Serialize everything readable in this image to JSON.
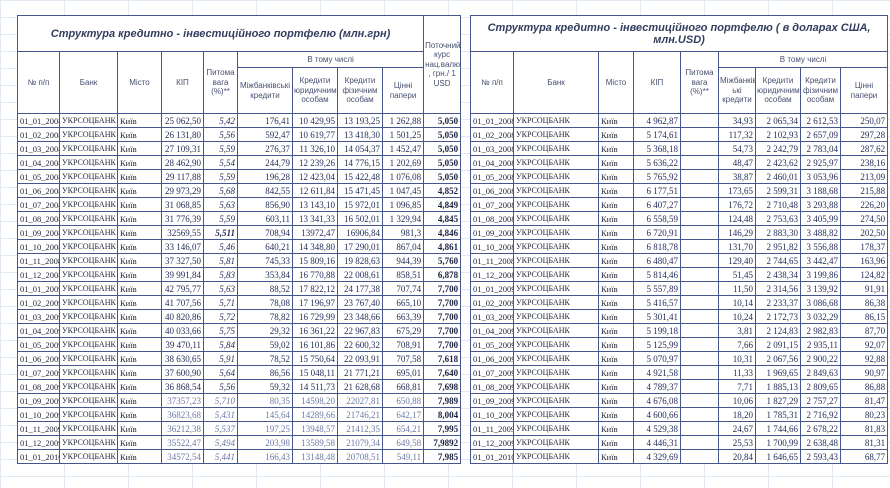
{
  "sheet": {
    "left_table": {
      "title": "Структура кредитно - інвестиційного портфелю (млн.грн)",
      "group_header": "В тому числі",
      "columns": [
        "№ п/п",
        "Банк",
        "Місто",
        "КІП",
        "Питома вага (%)**",
        "Міжбанківські кредити",
        "Кредити юридичним особам",
        "Кредити фізичним особам",
        "Цінні папери"
      ],
      "currency_column": "Поточний курс нац.валюти , грн./ 1 USD",
      "rows": [
        {
          "date": "01_01_2008",
          "bank": "УКРСОЦБАНК",
          "city": "Київ",
          "kip": "25 062,50",
          "share": "5,42",
          "interbank": "176,41",
          "legal": "10 429,95",
          "individual": "13 193,25",
          "securities": "1 262,88",
          "rate": "5,050"
        },
        {
          "date": "01_02_2008",
          "bank": "УКРСОЦБАНК",
          "city": "Київ",
          "kip": "26 131,80",
          "share": "5,56",
          "interbank": "592,47",
          "legal": "10 619,77",
          "individual": "13 418,30",
          "securities": "1 501,25",
          "rate": "5,050"
        },
        {
          "date": "01_03_2008",
          "bank": "УКРСОЦБАНК",
          "city": "Київ",
          "kip": "27 109,31",
          "share": "5,59",
          "interbank": "276,37",
          "legal": "11 326,10",
          "individual": "14 054,37",
          "securities": "1 452,47",
          "rate": "5,050"
        },
        {
          "date": "01_04_2008",
          "bank": "УКРСОЦБАНК",
          "city": "Київ",
          "kip": "28 462,90",
          "share": "5,54",
          "interbank": "244,79",
          "legal": "12 239,26",
          "individual": "14 776,15",
          "securities": "1 202,69",
          "rate": "5,050"
        },
        {
          "date": "01_05_2008",
          "bank": "УКРСОЦБАНК",
          "city": "Київ",
          "kip": "29 117,88",
          "share": "5,59",
          "interbank": "196,28",
          "legal": "12 423,04",
          "individual": "15 422,48",
          "securities": "1 076,08",
          "rate": "5,050"
        },
        {
          "date": "01_06_2008",
          "bank": "УКРСОЦБАНК",
          "city": "Київ",
          "kip": "29 973,29",
          "share": "5,68",
          "interbank": "842,55",
          "legal": "12 611,84",
          "individual": "15 471,45",
          "securities": "1 047,45",
          "rate": "4,852"
        },
        {
          "date": "01_07_2008",
          "bank": "УКРСОЦБАНК",
          "city": "Київ",
          "kip": "31 068,85",
          "share": "5,63",
          "interbank": "856,90",
          "legal": "13 143,10",
          "individual": "15 972,01",
          "securities": "1 096,85",
          "rate": "4,849"
        },
        {
          "date": "01_08_2008",
          "bank": "УКРСОЦБАНК",
          "city": "Київ",
          "kip": "31 776,39",
          "share": "5,59",
          "interbank": "603,11",
          "legal": "13 341,33",
          "individual": "16 502,01",
          "securities": "1 329,94",
          "rate": "4,845"
        },
        {
          "date": "01_09_2008",
          "bank": "УКРСОЦБАНК",
          "city": "Київ",
          "kip": "32569,55",
          "share": "5,511",
          "interbank": "708,94",
          "legal": "13972,47",
          "individual": "16906,84",
          "securities": "981,3",
          "rate": "4,846"
        },
        {
          "date": "01_10_2008",
          "bank": "УКРСОЦБАНК",
          "city": "Київ",
          "kip": "33 146,07",
          "share": "5,46",
          "interbank": "640,21",
          "legal": "14 348,80",
          "individual": "17 290,01",
          "securities": "867,04",
          "rate": "4,861"
        },
        {
          "date": "01_11_2008",
          "bank": "УКРСОЦБАНК",
          "city": "Київ",
          "kip": "37 327,50",
          "share": "5,81",
          "interbank": "745,33",
          "legal": "15 809,16",
          "individual": "19 828,63",
          "securities": "944,39",
          "rate": "5,760"
        },
        {
          "date": "01_12_2008",
          "bank": "УКРСОЦБАНК",
          "city": "Київ",
          "kip": "39 991,84",
          "share": "5,83",
          "interbank": "353,84",
          "legal": "16 770,88",
          "individual": "22 008,61",
          "securities": "858,51",
          "rate": "6,878"
        },
        {
          "date": "01_01_2009",
          "bank": "УКРСОЦБАНК",
          "city": "Київ",
          "kip": "42 795,77",
          "share": "5,63",
          "interbank": "88,52",
          "legal": "17 822,12",
          "individual": "24 177,38",
          "securities": "707,74",
          "rate": "7,700"
        },
        {
          "date": "01_02_2009",
          "bank": "УКРСОЦБАНК",
          "city": "Київ",
          "kip": "41 707,56",
          "share": "5,71",
          "interbank": "78,08",
          "legal": "17 196,97",
          "individual": "23 767,40",
          "securities": "665,10",
          "rate": "7,700"
        },
        {
          "date": "01_03_2009",
          "bank": "УКРСОЦБАНК",
          "city": "Київ",
          "kip": "40 820,86",
          "share": "5,72",
          "interbank": "78,82",
          "legal": "16 729,99",
          "individual": "23 348,66",
          "securities": "663,39",
          "rate": "7,700"
        },
        {
          "date": "01_04_2009",
          "bank": "УКРСОЦБАНК",
          "city": "Київ",
          "kip": "40 033,66",
          "share": "5,75",
          "interbank": "29,32",
          "legal": "16 361,22",
          "individual": "22 967,83",
          "securities": "675,29",
          "rate": "7,700"
        },
        {
          "date": "01_05_2009",
          "bank": "УКРСОЦБАНК",
          "city": "Київ",
          "kip": "39 470,11",
          "share": "5,84",
          "interbank": "59,02",
          "legal": "16 101,86",
          "individual": "22 600,32",
          "securities": "708,91",
          "rate": "7,700"
        },
        {
          "date": "01_06_2009",
          "bank": "УКРСОЦБАНК",
          "city": "Київ",
          "kip": "38 630,65",
          "share": "5,91",
          "interbank": "78,52",
          "legal": "15 750,64",
          "individual": "22 093,91",
          "securities": "707,58",
          "rate": "7,618"
        },
        {
          "date": "01_07_2009",
          "bank": "УКРСОЦБАНК",
          "city": "Київ",
          "kip": "37 600,90",
          "share": "5,64",
          "interbank": "86,56",
          "legal": "15 048,11",
          "individual": "21 771,21",
          "securities": "695,01",
          "rate": "7,640"
        },
        {
          "date": "01_08_2009",
          "bank": "УКРСОЦБАНК",
          "city": "Київ",
          "kip": "36 868,54",
          "share": "5,56",
          "interbank": "59,32",
          "legal": "14 511,73",
          "individual": "21 628,68",
          "securities": "668,81",
          "rate": "7,698"
        },
        {
          "date": "01_09_2009",
          "bank": "УКРСОЦБАНК",
          "city": "Київ",
          "kip": "37357,23",
          "share": "5,710",
          "interbank": "80,35",
          "legal": "14598,20",
          "individual": "22027,81",
          "securities": "650,88",
          "rate": "7,989"
        },
        {
          "date": "01_10_2009",
          "bank": "УКРСОЦБАНК",
          "city": "Київ",
          "kip": "36823,68",
          "share": "5,431",
          "interbank": "145,64",
          "legal": "14289,66",
          "individual": "21746,21",
          "securities": "642,17",
          "rate": "8,004"
        },
        {
          "date": "01_11_2009",
          "bank": "УКРСОЦБАНК",
          "city": "Київ",
          "kip": "36212,38",
          "share": "5,537",
          "interbank": "197,25",
          "legal": "13948,57",
          "individual": "21412,35",
          "securities": "654,21",
          "rate": "7,995"
        },
        {
          "date": "01_12_2009",
          "bank": "УКРСОЦБАНК",
          "city": "Київ",
          "kip": "35522,47",
          "share": "5,494",
          "interbank": "203,98",
          "legal": "13589,58",
          "individual": "21079,34",
          "securities": "649,58",
          "rate": "7,9892"
        },
        {
          "date": "01_01_2010",
          "bank": "УКРСОЦБАНК",
          "city": "Київ",
          "kip": "34572,54",
          "share": "5,441",
          "interbank": "166,43",
          "legal": "13148,48",
          "individual": "20708,51",
          "securities": "549,11",
          "rate": "7,985"
        }
      ]
    },
    "right_table": {
      "title": "Структура кредитно - інвестиційного портфелю ( в доларах США, млн.USD)",
      "group_header": "В тому числі",
      "columns": [
        "№ п/п",
        "Банк",
        "Місто",
        "КІП",
        "Питома вага (%)**",
        "Міжбанківс ькі кредити",
        "Кредити юридичним особам",
        "Кредити фізичним особам",
        "Цінні папери"
      ],
      "rows": [
        {
          "date": "01_01_2008",
          "bank": "УКРСОЦБАНК",
          "city": "Київ",
          "kip": "4 962,87",
          "share": "",
          "interbank": "34,93",
          "legal": "2 065,34",
          "individual": "2 612,53",
          "securities": "250,07"
        },
        {
          "date": "01_02_2008",
          "bank": "УКРСОЦБАНК",
          "city": "Київ",
          "kip": "5 174,61",
          "share": "",
          "interbank": "117,32",
          "legal": "2 102,93",
          "individual": "2 657,09",
          "securities": "297,28"
        },
        {
          "date": "01_03_2008",
          "bank": "УКРСОЦБАНК",
          "city": "Київ",
          "kip": "5 368,18",
          "share": "",
          "interbank": "54,73",
          "legal": "2 242,79",
          "individual": "2 783,04",
          "securities": "287,62"
        },
        {
          "date": "01_04_2008",
          "bank": "УКРСОЦБАНК",
          "city": "Київ",
          "kip": "5 636,22",
          "share": "",
          "interbank": "48,47",
          "legal": "2 423,62",
          "individual": "2 925,97",
          "securities": "238,16"
        },
        {
          "date": "01_05_2008",
          "bank": "УКРСОЦБАНК",
          "city": "Київ",
          "kip": "5 765,92",
          "share": "",
          "interbank": "38,87",
          "legal": "2 460,01",
          "individual": "3 053,96",
          "securities": "213,09"
        },
        {
          "date": "01_06_2008",
          "bank": "УКРСОЦБАНК",
          "city": "Київ",
          "kip": "6 177,51",
          "share": "",
          "interbank": "173,65",
          "legal": "2 599,31",
          "individual": "3 188,68",
          "securities": "215,88"
        },
        {
          "date": "01_07_2008",
          "bank": "УКРСОЦБАНК",
          "city": "Київ",
          "kip": "6 407,27",
          "share": "",
          "interbank": "176,72",
          "legal": "2 710,48",
          "individual": "3 293,88",
          "securities": "226,20"
        },
        {
          "date": "01_08_2008",
          "bank": "УКРСОЦБАНК",
          "city": "Київ",
          "kip": "6 558,59",
          "share": "",
          "interbank": "124,48",
          "legal": "2 753,63",
          "individual": "3 405,99",
          "securities": "274,50"
        },
        {
          "date": "01_09_2008",
          "bank": "УКРСОЦБАНК",
          "city": "Київ",
          "kip": "6 720,91",
          "share": "",
          "interbank": "146,29",
          "legal": "2 883,30",
          "individual": "3 488,82",
          "securities": "202,50"
        },
        {
          "date": "01_10_2008",
          "bank": "УКРСОЦБАНК",
          "city": "Київ",
          "kip": "6 818,78",
          "share": "",
          "interbank": "131,70",
          "legal": "2 951,82",
          "individual": "3 556,88",
          "securities": "178,37"
        },
        {
          "date": "01_11_2008",
          "bank": "УКРСОЦБАНК",
          "city": "Київ",
          "kip": "6 480,47",
          "share": "",
          "interbank": "129,40",
          "legal": "2 744,65",
          "individual": "3 442,47",
          "securities": "163,96"
        },
        {
          "date": "01_12_2008",
          "bank": "УКРСОЦБАНК",
          "city": "Київ",
          "kip": "5 814,46",
          "share": "",
          "interbank": "51,45",
          "legal": "2 438,34",
          "individual": "3 199,86",
          "securities": "124,82"
        },
        {
          "date": "01_01_2009",
          "bank": "УКРСОЦБАНК",
          "city": "Київ",
          "kip": "5 557,89",
          "share": "",
          "interbank": "11,50",
          "legal": "2 314,56",
          "individual": "3 139,92",
          "securities": "91,91"
        },
        {
          "date": "01_02_2009",
          "bank": "УКРСОЦБАНК",
          "city": "Київ",
          "kip": "5 416,57",
          "share": "",
          "interbank": "10,14",
          "legal": "2 233,37",
          "individual": "3 086,68",
          "securities": "86,38"
        },
        {
          "date": "01_03_2009",
          "bank": "УКРСОЦБАНК",
          "city": "Київ",
          "kip": "5 301,41",
          "share": "",
          "interbank": "10,24",
          "legal": "2 172,73",
          "individual": "3 032,29",
          "securities": "86,15"
        },
        {
          "date": "01_04_2009",
          "bank": "УКРСОЦБАНК",
          "city": "Київ",
          "kip": "5 199,18",
          "share": "",
          "interbank": "3,81",
          "legal": "2 124,83",
          "individual": "2 982,83",
          "securities": "87,70"
        },
        {
          "date": "01_05_2009",
          "bank": "УКРСОЦБАНК",
          "city": "Київ",
          "kip": "5 125,99",
          "share": "",
          "interbank": "7,66",
          "legal": "2 091,15",
          "individual": "2 935,11",
          "securities": "92,07"
        },
        {
          "date": "01_06_2009",
          "bank": "УКРСОЦБАНК",
          "city": "Київ",
          "kip": "5 070,97",
          "share": "",
          "interbank": "10,31",
          "legal": "2 067,56",
          "individual": "2 900,22",
          "securities": "92,88"
        },
        {
          "date": "01_07_2009",
          "bank": "УКРСОЦБАНК",
          "city": "Київ",
          "kip": "4 921,58",
          "share": "",
          "interbank": "11,33",
          "legal": "1 969,65",
          "individual": "2 849,63",
          "securities": "90,97"
        },
        {
          "date": "01_08_2009",
          "bank": "УКРСОЦБАНК",
          "city": "Київ",
          "kip": "4 789,37",
          "share": "",
          "interbank": "7,71",
          "legal": "1 885,13",
          "individual": "2 809,65",
          "securities": "86,88"
        },
        {
          "date": "01_09_2009",
          "bank": "УКРСОЦБАНК",
          "city": "Київ",
          "kip": "4 676,08",
          "share": "",
          "interbank": "10,06",
          "legal": "1 827,29",
          "individual": "2 757,27",
          "securities": "81,47"
        },
        {
          "date": "01_10_2009",
          "bank": "УКРСОЦБАНК",
          "city": "Київ",
          "kip": "4 600,66",
          "share": "",
          "interbank": "18,20",
          "legal": "1 785,31",
          "individual": "2 716,92",
          "securities": "80,23"
        },
        {
          "date": "01_11_2009",
          "bank": "УКРСОЦБАНК",
          "city": "Київ",
          "kip": "4 529,38",
          "share": "",
          "interbank": "24,67",
          "legal": "1 744,66",
          "individual": "2 678,22",
          "securities": "81,83"
        },
        {
          "date": "01_12_2009",
          "bank": "УКРСОЦБАНК",
          "city": "Київ",
          "kip": "4 446,31",
          "share": "",
          "interbank": "25,53",
          "legal": "1 700,99",
          "individual": "2 638,48",
          "securities": "81,31"
        },
        {
          "date": "01_01_2010",
          "bank": "УКРСОЦБАНК",
          "city": "Київ",
          "kip": "4 329,69",
          "share": "",
          "interbank": "20,84",
          "legal": "1 646,65",
          "individual": "2 593,43",
          "securities": "68,77"
        }
      ]
    }
  }
}
